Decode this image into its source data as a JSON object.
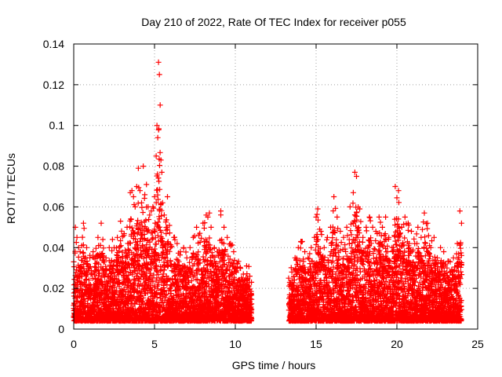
{
  "chart_data": {
    "type": "scatter",
    "title": "Day 210 of 2022, Rate Of TEC Index for receiver p055",
    "xlabel": "GPS time / hours",
    "ylabel": "ROTI / TECUs",
    "xlim": [
      0,
      25
    ],
    "ylim": [
      0,
      0.14
    ],
    "x_ticks": [
      0,
      5,
      10,
      15,
      20,
      25
    ],
    "y_ticks": [
      0,
      0.02,
      0.04,
      0.06,
      0.08,
      0.1,
      0.12,
      0.14
    ],
    "x_tick_labels": [
      "0",
      "5",
      "10",
      "15",
      "20",
      "25"
    ],
    "y_tick_labels": [
      "0",
      "0.02",
      "0.04",
      "0.06",
      "0.08",
      "0.1",
      "0.12",
      "0.14"
    ],
    "grid": true,
    "marker": "plus",
    "color": "#ff0000",
    "data_gap_hours": [
      11.0,
      13.3
    ],
    "series": [
      {
        "name": "ROTI",
        "x": [
          0.0,
          0.1,
          0.2,
          0.3,
          0.4,
          0.5,
          0.6,
          0.8,
          1.0,
          1.2,
          1.5,
          1.7,
          1.8,
          2.0,
          2.2,
          2.4,
          2.5,
          2.7,
          2.9,
          3.1,
          3.3,
          3.5,
          3.6,
          3.7,
          3.8,
          3.9,
          4.0,
          4.1,
          4.2,
          4.3,
          4.4,
          4.5,
          4.6,
          4.7,
          4.8,
          4.9,
          5.0,
          5.1,
          5.15,
          5.2,
          5.25,
          5.3,
          5.35,
          5.4,
          5.45,
          5.5,
          5.6,
          5.8,
          6.0,
          6.2,
          6.4,
          6.6,
          6.8,
          7.0,
          7.2,
          7.4,
          7.6,
          7.8,
          8.0,
          8.2,
          8.3,
          8.4,
          8.5,
          8.7,
          8.9,
          9.1,
          9.3,
          9.5,
          9.7,
          9.9,
          10.1,
          10.3,
          10.5,
          10.7,
          10.9,
          11.0,
          13.3,
          13.5,
          13.7,
          13.9,
          14.1,
          14.3,
          14.5,
          14.7,
          14.9,
          15.0,
          15.1,
          15.3,
          15.5,
          15.7,
          15.9,
          16.1,
          16.3,
          16.5,
          16.7,
          16.9,
          17.1,
          17.3,
          17.4,
          17.5,
          17.7,
          17.9,
          18.1,
          18.3,
          18.5,
          18.7,
          18.9,
          19.1,
          19.3,
          19.5,
          19.7,
          19.9,
          20.1,
          20.3,
          20.5,
          20.7,
          20.9,
          21.1,
          21.3,
          21.5,
          21.7,
          21.9,
          22.1,
          22.3,
          22.5,
          22.7,
          22.9,
          23.1,
          23.3,
          23.5,
          23.7,
          23.9,
          24.0
        ],
        "y": [
          0.033,
          0.05,
          0.045,
          0.04,
          0.038,
          0.041,
          0.052,
          0.04,
          0.035,
          0.038,
          0.045,
          0.052,
          0.044,
          0.035,
          0.04,
          0.044,
          0.04,
          0.045,
          0.053,
          0.046,
          0.05,
          0.067,
          0.068,
          0.065,
          0.06,
          0.07,
          0.079,
          0.068,
          0.062,
          0.08,
          0.066,
          0.071,
          0.06,
          0.056,
          0.058,
          0.06,
          0.065,
          0.085,
          0.1,
          0.094,
          0.131,
          0.125,
          0.11,
          0.083,
          0.077,
          0.062,
          0.056,
          0.065,
          0.04,
          0.045,
          0.042,
          0.038,
          0.04,
          0.035,
          0.04,
          0.045,
          0.05,
          0.047,
          0.052,
          0.056,
          0.055,
          0.057,
          0.05,
          0.04,
          0.038,
          0.058,
          0.05,
          0.045,
          0.042,
          0.038,
          0.032,
          0.03,
          0.027,
          0.031,
          0.026,
          0.023,
          0.025,
          0.028,
          0.035,
          0.04,
          0.043,
          0.038,
          0.035,
          0.04,
          0.045,
          0.055,
          0.059,
          0.048,
          0.04,
          0.045,
          0.05,
          0.065,
          0.055,
          0.048,
          0.045,
          0.05,
          0.06,
          0.067,
          0.077,
          0.075,
          0.059,
          0.045,
          0.05,
          0.055,
          0.05,
          0.048,
          0.055,
          0.05,
          0.055,
          0.045,
          0.04,
          0.07,
          0.068,
          0.05,
          0.055,
          0.052,
          0.048,
          0.042,
          0.05,
          0.045,
          0.057,
          0.052,
          0.04,
          0.045,
          0.035,
          0.04,
          0.038,
          0.03,
          0.033,
          0.035,
          0.037,
          0.058,
          0.052
        ]
      }
    ]
  }
}
